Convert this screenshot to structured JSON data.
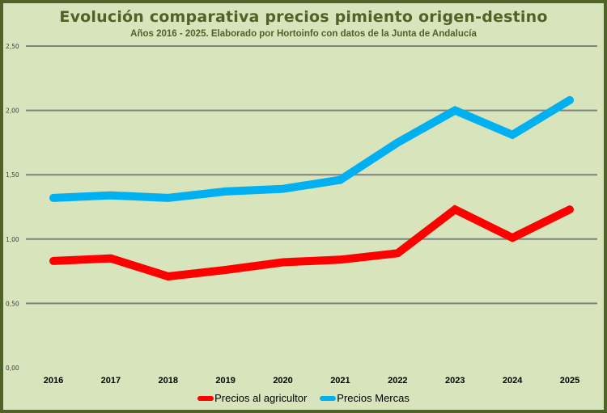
{
  "chart_data": {
    "type": "line",
    "title": "Evolución comparativa precios pimiento origen-destino",
    "subtitle": "Años 2016 - 2025. Elaborado por Hortoinfo con datos de la Junta de Andalucía",
    "xlabel": "",
    "ylabel": "",
    "categories": [
      "2016",
      "2017",
      "2018",
      "2019",
      "2020",
      "2021",
      "2022",
      "2023",
      "2024",
      "2025"
    ],
    "ylim": [
      0,
      2.5
    ],
    "yticks": [
      {
        "value": 0,
        "label": "0,00"
      },
      {
        "value": 0.5,
        "label": "0,50"
      },
      {
        "value": 1.0,
        "label": "1,00"
      },
      {
        "value": 1.5,
        "label": "1,50"
      },
      {
        "value": 2.0,
        "label": "2,00"
      },
      {
        "value": 2.5,
        "label": "2,50"
      }
    ],
    "grid": true,
    "legend_position": "bottom",
    "series": [
      {
        "name": "Precios al agricultor",
        "color": "#ff0000",
        "values": [
          0.83,
          0.85,
          0.71,
          0.76,
          0.82,
          0.84,
          0.89,
          1.23,
          1.01,
          1.23
        ]
      },
      {
        "name": "Precios Mercas",
        "color": "#00b0f0",
        "values": [
          1.32,
          1.34,
          1.32,
          1.37,
          1.39,
          1.46,
          1.75,
          2.0,
          1.81,
          2.08
        ]
      }
    ]
  },
  "colors": {
    "background": "#d8e4bc",
    "border": "#4f6228",
    "title": "#4f6228",
    "gridline": "#808080"
  }
}
